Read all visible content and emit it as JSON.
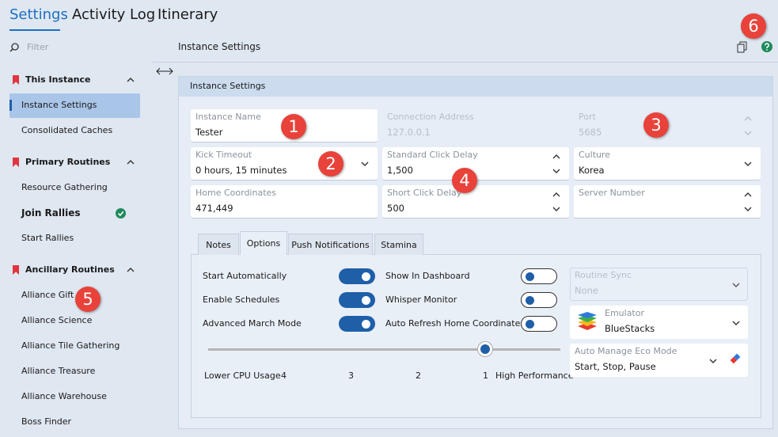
{
  "top_tabs": [
    {
      "label": "Settings",
      "active": true
    },
    {
      "label": "Activity Log",
      "active": false
    },
    {
      "label": "Itinerary",
      "active": false
    }
  ],
  "filter_placeholder": "Filter",
  "header": {
    "title": "Instance Settings"
  },
  "sidebar": [
    {
      "title": "This Instance",
      "items": [
        {
          "label": "Instance Settings",
          "selected": true
        },
        {
          "label": "Consolidated Caches"
        }
      ]
    },
    {
      "title": "Primary Routines",
      "items": [
        {
          "label": "Resource Gathering"
        },
        {
          "label": "Join Rallies",
          "enabled": true
        },
        {
          "label": "Start Rallies"
        }
      ]
    },
    {
      "title": "Ancillary Routines",
      "items": [
        {
          "label": "Alliance Gift"
        },
        {
          "label": "Alliance Science"
        },
        {
          "label": "Alliance Tile Gathering"
        },
        {
          "label": "Alliance Treasure"
        },
        {
          "label": "Alliance Warehouse"
        },
        {
          "label": "Boss Finder"
        }
      ]
    }
  ],
  "panel": {
    "title": "Instance Settings",
    "fields": [
      {
        "label": "Instance Name",
        "value": "Tester",
        "kind": "text",
        "disabled": false
      },
      {
        "label": "Connection Address",
        "value": "127.0.0.1",
        "kind": "text",
        "disabled": true
      },
      {
        "label": "Port",
        "value": "5685",
        "kind": "spinner",
        "disabled": true
      },
      {
        "label": "Kick Timeout",
        "value": "0 hours, 15 minutes",
        "kind": "dropdown",
        "disabled": false
      },
      {
        "label": "Standard Click Delay",
        "value": "1,500",
        "kind": "spinner",
        "disabled": false
      },
      {
        "label": "Culture",
        "value": "Korea",
        "kind": "dropdown",
        "disabled": false
      },
      {
        "label": "Home Coordinates",
        "value": "471,449",
        "kind": "text",
        "disabled": false
      },
      {
        "label": "Short Click Delay",
        "value": "500",
        "kind": "spinner",
        "disabled": false
      },
      {
        "label": "Server Number",
        "kind": "spinner",
        "disabled": false
      }
    ]
  },
  "inner_tabs": [
    {
      "label": "Notes",
      "active": false
    },
    {
      "label": "Options",
      "active": true
    },
    {
      "label": "Push Notifications",
      "active": false
    },
    {
      "label": "Stamina",
      "active": false
    }
  ],
  "toggles": [
    {
      "label": "Start Automatically",
      "on": true
    },
    {
      "label": "Enable Schedules",
      "on": true
    },
    {
      "label": "Advanced March Mode",
      "on": true
    },
    {
      "label": "Show In Dashboard",
      "on": false
    },
    {
      "label": "Whisper Monitor",
      "on": false
    },
    {
      "label": "Auto Refresh Home Coordinates",
      "on": false
    }
  ],
  "slider": {
    "min_label": "Lower CPU Usage",
    "ticks": [
      "4",
      "3",
      "2",
      "1"
    ],
    "max_label": "High Performance"
  },
  "side_fields": [
    {
      "label": "Routine Sync",
      "value": "None",
      "disabled": true
    },
    {
      "label": "Emulator",
      "value": "BlueStacks",
      "disabled": false
    },
    {
      "label": "Auto Manage Eco Mode",
      "value": "Start, Stop, Pause",
      "disabled": false
    }
  ],
  "badges": [
    "1",
    "2",
    "3",
    "4",
    "5",
    "6"
  ]
}
